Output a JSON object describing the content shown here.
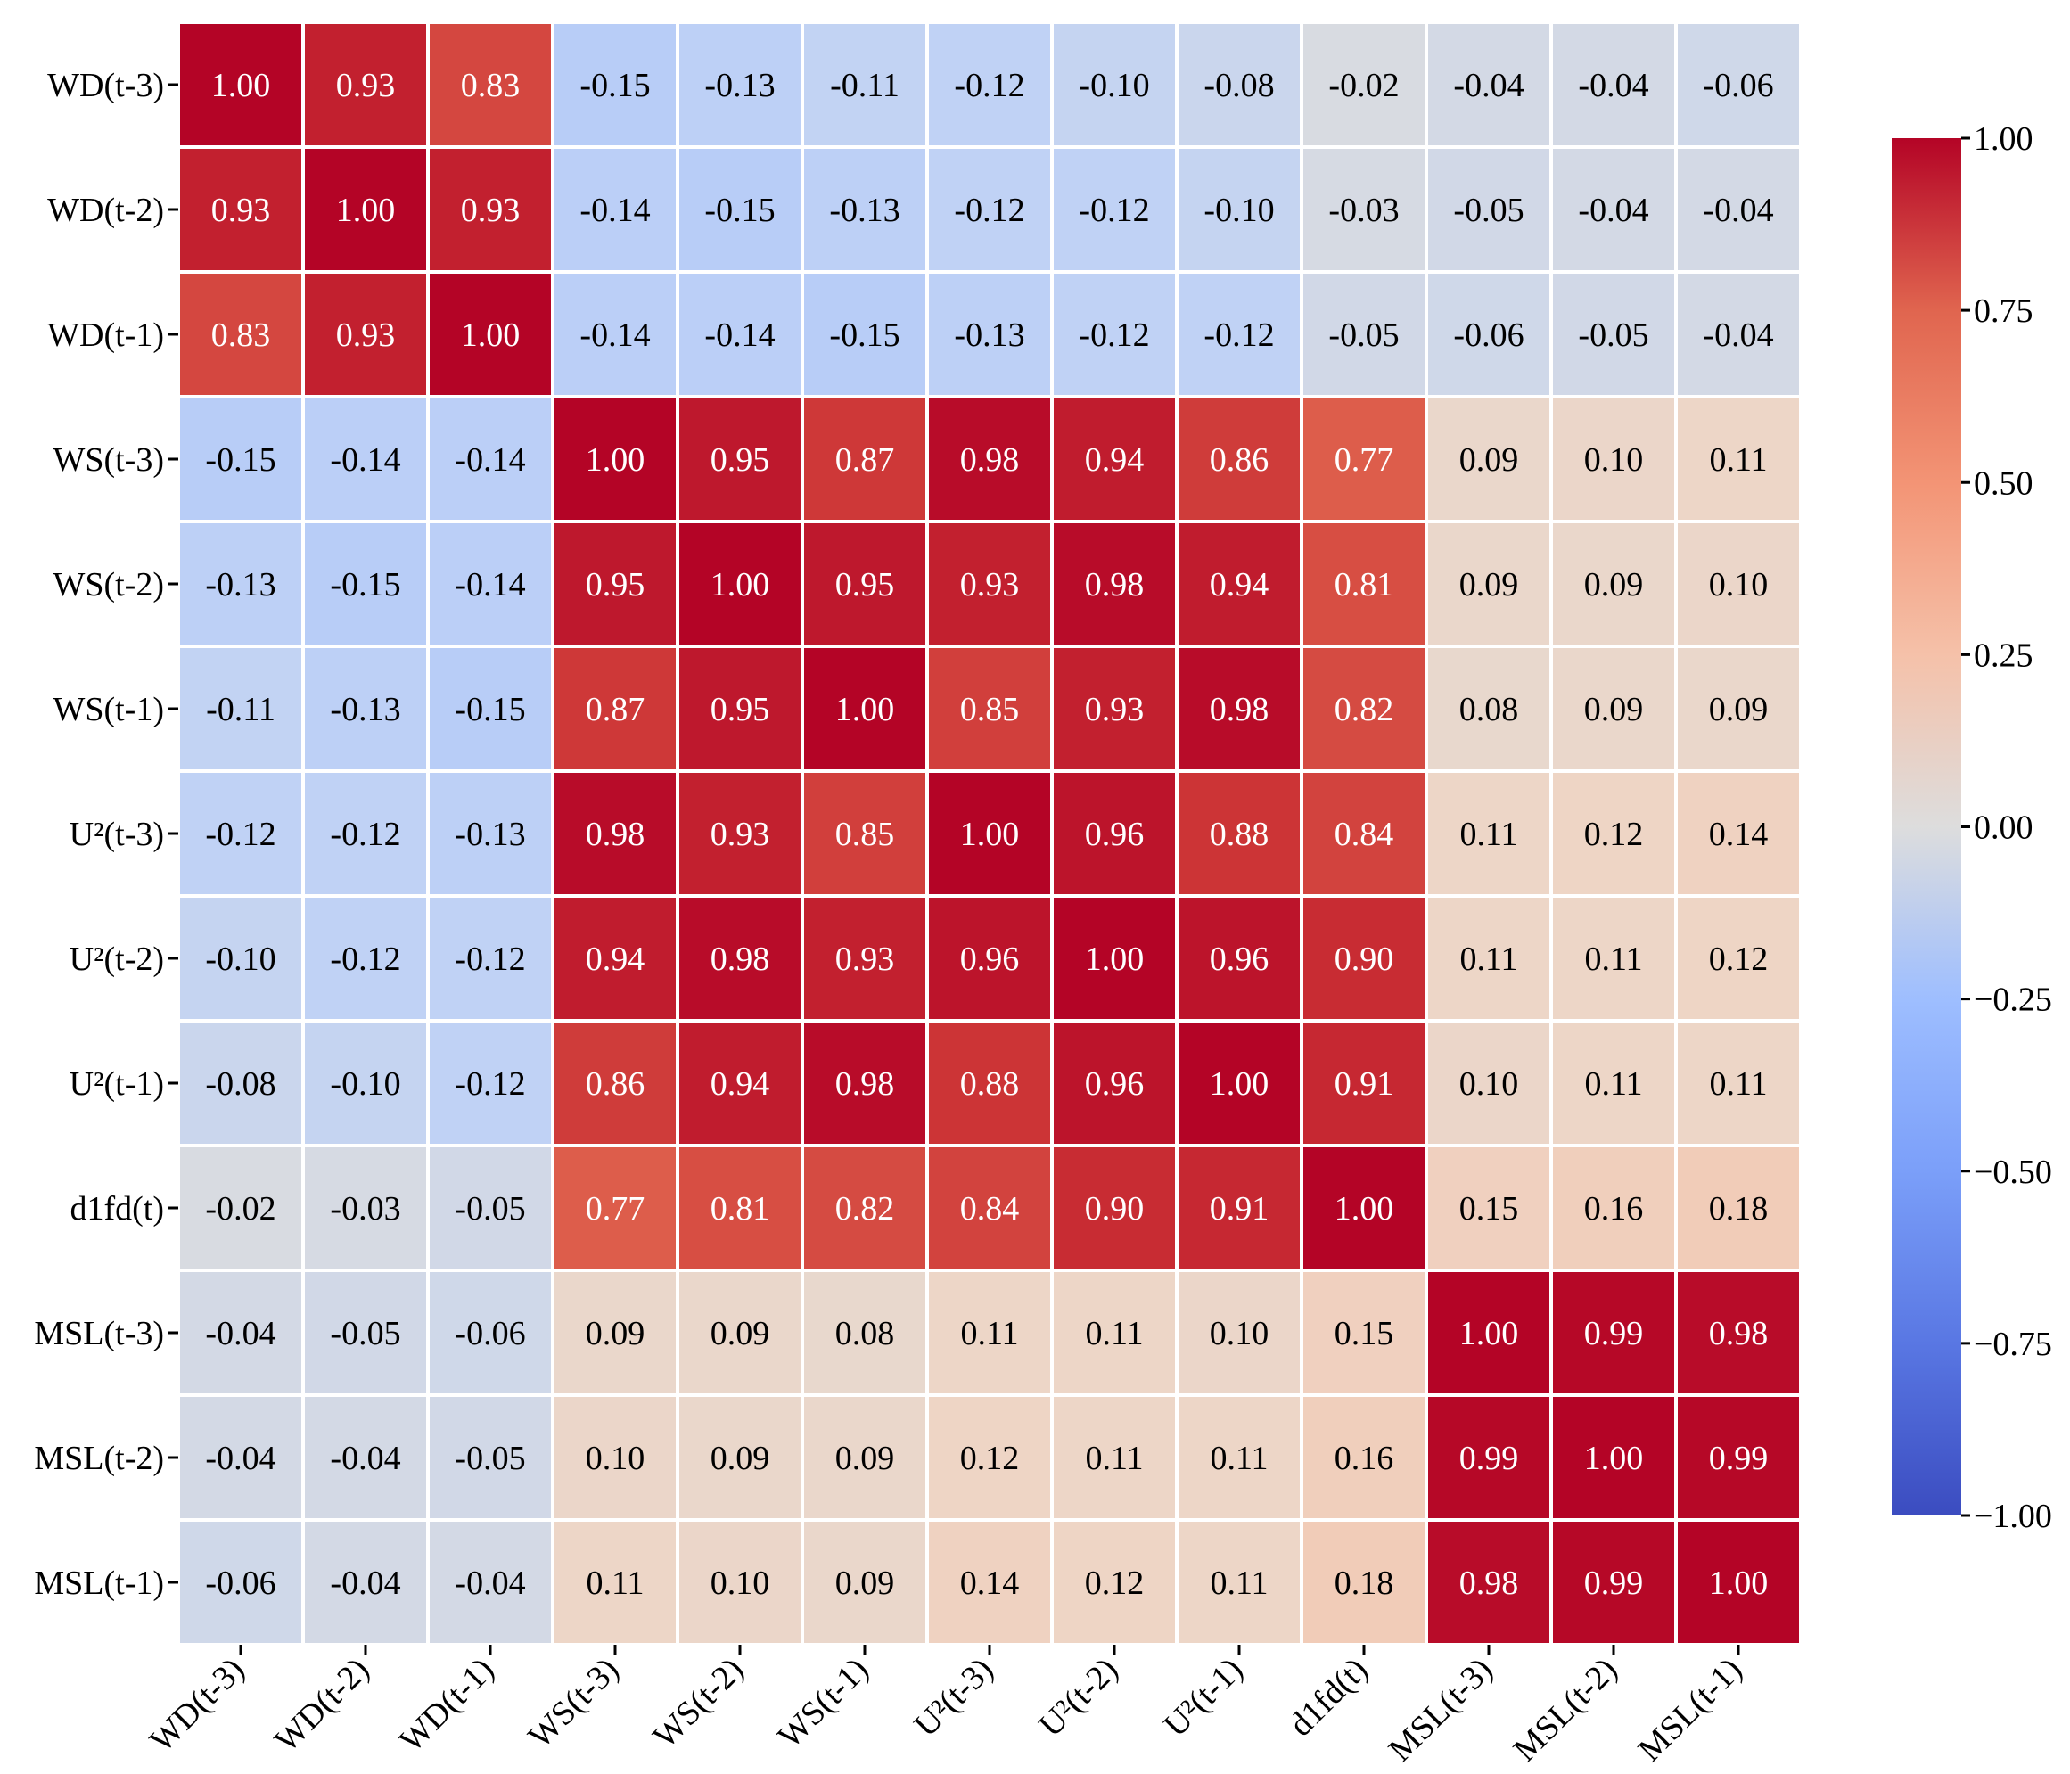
{
  "chart_data": {
    "type": "heatmap",
    "title": "",
    "xlabel": "",
    "ylabel": "",
    "labels": [
      "WD(t-3)",
      "WD(t-2)",
      "WD(t-1)",
      "WS(t-3)",
      "WS(t-2)",
      "WS(t-1)",
      "U²(t-3)",
      "U²(t-2)",
      "U²(t-1)",
      "d1fd(t)",
      "MSL(t-3)",
      "MSL(t-2)",
      "MSL(t-1)"
    ],
    "matrix": [
      [
        1.0,
        0.93,
        0.83,
        -0.15,
        -0.13,
        -0.11,
        -0.12,
        -0.1,
        -0.08,
        -0.02,
        -0.04,
        -0.04,
        -0.06
      ],
      [
        0.93,
        1.0,
        0.93,
        -0.14,
        -0.15,
        -0.13,
        -0.12,
        -0.12,
        -0.1,
        -0.03,
        -0.05,
        -0.04,
        -0.04
      ],
      [
        0.83,
        0.93,
        1.0,
        -0.14,
        -0.14,
        -0.15,
        -0.13,
        -0.12,
        -0.12,
        -0.05,
        -0.06,
        -0.05,
        -0.04
      ],
      [
        -0.15,
        -0.14,
        -0.14,
        1.0,
        0.95,
        0.87,
        0.98,
        0.94,
        0.86,
        0.77,
        0.09,
        0.1,
        0.11
      ],
      [
        -0.13,
        -0.15,
        -0.14,
        0.95,
        1.0,
        0.95,
        0.93,
        0.98,
        0.94,
        0.81,
        0.09,
        0.09,
        0.1
      ],
      [
        -0.11,
        -0.13,
        -0.15,
        0.87,
        0.95,
        1.0,
        0.85,
        0.93,
        0.98,
        0.82,
        0.08,
        0.09,
        0.09
      ],
      [
        -0.12,
        -0.12,
        -0.13,
        0.98,
        0.93,
        0.85,
        1.0,
        0.96,
        0.88,
        0.84,
        0.11,
        0.12,
        0.14
      ],
      [
        -0.1,
        -0.12,
        -0.12,
        0.94,
        0.98,
        0.93,
        0.96,
        1.0,
        0.96,
        0.9,
        0.11,
        0.11,
        0.12
      ],
      [
        -0.08,
        -0.1,
        -0.12,
        0.86,
        0.94,
        0.98,
        0.88,
        0.96,
        1.0,
        0.91,
        0.1,
        0.11,
        0.11
      ],
      [
        -0.02,
        -0.03,
        -0.05,
        0.77,
        0.81,
        0.82,
        0.84,
        0.9,
        0.91,
        1.0,
        0.15,
        0.16,
        0.18
      ],
      [
        -0.04,
        -0.05,
        -0.06,
        0.09,
        0.09,
        0.08,
        0.11,
        0.11,
        0.1,
        0.15,
        1.0,
        0.99,
        0.98
      ],
      [
        -0.04,
        -0.04,
        -0.05,
        0.1,
        0.09,
        0.09,
        0.12,
        0.11,
        0.11,
        0.16,
        0.99,
        1.0,
        0.99
      ],
      [
        -0.06,
        -0.04,
        -0.04,
        0.11,
        0.1,
        0.09,
        0.14,
        0.12,
        0.11,
        0.18,
        0.98,
        0.99,
        1.0
      ]
    ],
    "value_range": [
      -1.0,
      1.0
    ],
    "colormap": "coolwarm",
    "colorbar_ticks": [
      1.0,
      0.75,
      0.5,
      0.25,
      0.0,
      -0.25,
      -0.5,
      -0.75,
      -1.0
    ],
    "colorbar_tick_labels": [
      "1.00",
      "0.75",
      "0.50",
      "0.25",
      "0.00",
      "−0.25",
      "−0.50",
      "−0.75",
      "−1.00"
    ],
    "annotation_format": "2 decimals",
    "colors": {
      "low": "#3b4cc0",
      "mid": "#dddddd",
      "high": "#b40426",
      "cell_border": "#ffffff"
    }
  }
}
